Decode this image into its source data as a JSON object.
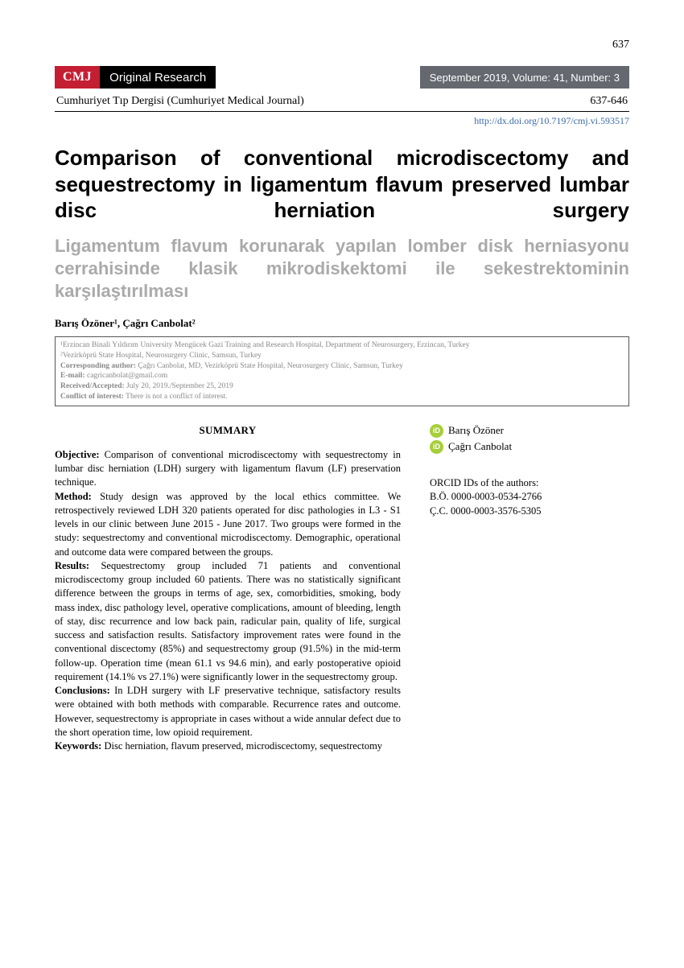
{
  "page_number": "637",
  "header": {
    "journal_abbrev": "CMJ",
    "section_label": "Original Research",
    "issue_info": "September  2019, Volume: 41, Number: 3",
    "journal_full": "Cumhuriyet Tıp Dergisi (Cumhuriyet Medical Journal)",
    "page_range": "637-646",
    "doi": "http://dx.doi.org/10.7197/cmj.vi.593517",
    "colors": {
      "cmj_badge_bg": "#c41e33",
      "section_badge_bg": "#000000",
      "issue_bg": "#666870",
      "doi_color": "#3a6aa8"
    }
  },
  "title": {
    "en": "Comparison of conventional microdiscectomy and sequestrectomy in ligamentum flavum preserved lumbar disc herniation surgery",
    "tr": "Ligamentum flavum korunarak yapılan lomber disk herniasyonu cerrahisinde klasik mikrodiskektomi ile sekestrektominin karşılaştırılması",
    "tr_color": "#aaaaaa"
  },
  "authors_line": "Barış Özöner¹, Çağrı Canbolat²",
  "affiliations": {
    "a1": "¹Erzincan Binali Yıldırım University Mengücek Gazi Training and Research Hospital, Department of Neurosurgery, Erzincan, Turkey",
    "a2": "²Vezirköprü State Hospital, Neurosurgery Clinic, Samsun, Turkey",
    "corresponding_label": "Corresponding author:",
    "corresponding": " Çağrı Canbolat, MD, Vezirköprü State Hospital, Neurosurgery Clinic, Samsun, Turkey",
    "email_label": "E-mail:",
    "email": " cagricanbolat@gmail.com",
    "received_label": "Received/Accepted:",
    "received": " July 20, 2019./September 25, 2019",
    "coi_label": "Conflict of interest:",
    "coi": " There is not a conflict of interest."
  },
  "summary": {
    "heading": "SUMMARY",
    "objective_label": "Objective:",
    "objective": " Comparison of conventional microdiscectomy with sequestrectomy in lumbar disc herniation (LDH) surgery with ligamentum flavum (LF) preservation technique.",
    "method_label": "Method:",
    "method": " Study design was approved by the local ethics committee. We retrospectively reviewed LDH 320 patients operated for disc pathologies in L3 - S1 levels in our clinic between June 2015 - June 2017. Two groups were formed in the study: sequestrectomy and conventional microdiscectomy. Demographic, operational and outcome data were compared between the groups.",
    "results_label": "Results:",
    "results": " Sequestrectomy group included 71 patients and conventional microdiscectomy group included 60 patients. There was no statistically significant difference between the groups in terms of age, sex, comorbidities, smoking, body mass index, disc pathology level, operative complications, amount of bleeding, length of stay, disc recurrence and low back pain, radicular pain, quality of life, surgical success and satisfaction results. Satisfactory improvement rates were found in the conventional discectomy (85%) and sequestrectomy group (91.5%) in the mid-term follow-up. Operation time (mean 61.1 vs 94.6 min),  and early postoperative opioid requirement (14.1% vs 27.1%) were significantly lower in the sequestrectomy group.",
    "conclusions_label": "Conclusions:",
    "conclusions": " In LDH surgery with LF preservative technique, satisfactory results were obtained with both methods with comparable. Recurrence rates and outcome. However,  sequestrectomy is appropriate in cases without a wide annular defect due to the short operation time, low opioid requirement.",
    "keywords_label": "Keywords:",
    "keywords": " Disc herniation, flavum preserved, microdiscectomy, sequestrectomy"
  },
  "sidebar": {
    "author1": "Barış Özöner",
    "author2": "Çağrı Canbolat",
    "orcid_heading": "ORCID IDs of the authors:",
    "orcid1": "B.Ö. 0000-0003-0534-2766",
    "orcid2": "Ç.C. 0000-0003-3576-5305",
    "orcid_icon_color": "#a6ce39"
  }
}
